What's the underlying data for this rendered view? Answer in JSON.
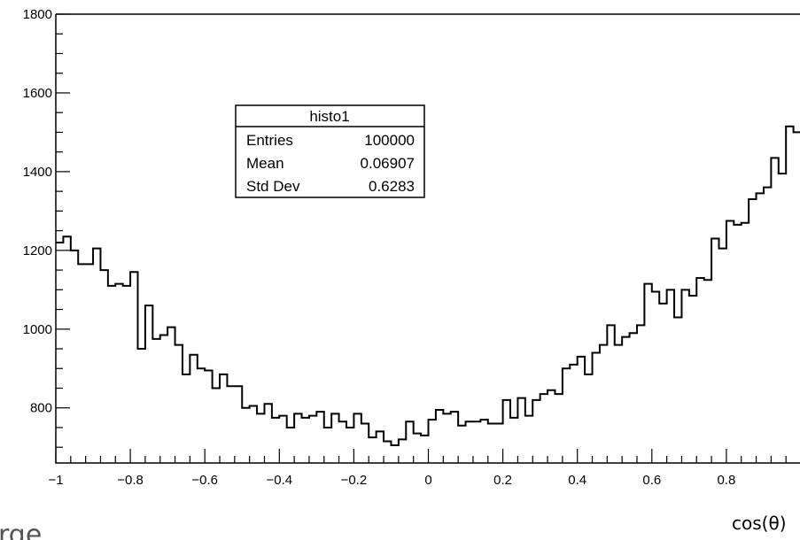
{
  "chart_data": {
    "type": "histogram",
    "xlim": [
      -1,
      1
    ],
    "ylim": [
      660,
      1800
    ],
    "bins": 100,
    "x_tick_labels": [
      "−1",
      "−0.8",
      "−0.6",
      "−0.4",
      "−0.2",
      "0",
      "0.2",
      "0.4",
      "0.6",
      "0.8"
    ],
    "x_tick_values": [
      -1,
      -0.8,
      -0.6,
      -0.4,
      -0.2,
      0,
      0.2,
      0.4,
      0.6,
      0.8
    ],
    "y_tick_labels": [
      "800",
      "1000",
      "1200",
      "1400",
      "1600",
      "1800"
    ],
    "y_tick_values": [
      800,
      1000,
      1200,
      1400,
      1600,
      1800
    ],
    "xlabel": "cos(θ)",
    "values": [
      1220,
      1235,
      1200,
      1165,
      1165,
      1205,
      1150,
      1110,
      1115,
      1110,
      1145,
      950,
      1060,
      975,
      985,
      1005,
      960,
      885,
      935,
      900,
      895,
      850,
      885,
      855,
      855,
      800,
      805,
      785,
      810,
      775,
      780,
      750,
      785,
      775,
      780,
      790,
      750,
      785,
      765,
      750,
      785,
      760,
      725,
      740,
      715,
      705,
      720,
      765,
      735,
      730,
      770,
      795,
      785,
      790,
      755,
      765,
      765,
      770,
      760,
      760,
      820,
      775,
      825,
      780,
      820,
      835,
      845,
      835,
      900,
      910,
      930,
      885,
      940,
      960,
      1010,
      960,
      980,
      990,
      1010,
      1115,
      1095,
      1065,
      1100,
      1030,
      1100,
      1085,
      1130,
      1125,
      1230,
      1205,
      1275,
      1265,
      1270,
      1330,
      1345,
      1360,
      1435,
      1395,
      1515,
      1500
    ]
  },
  "stats_box": {
    "title": "histo1",
    "rows": [
      {
        "label": "Entries",
        "value": "100000"
      },
      {
        "label": "Mean",
        "value": "0.06907"
      },
      {
        "label": "Std Dev",
        "value": "0.6283"
      }
    ]
  },
  "partial_text": "rge"
}
